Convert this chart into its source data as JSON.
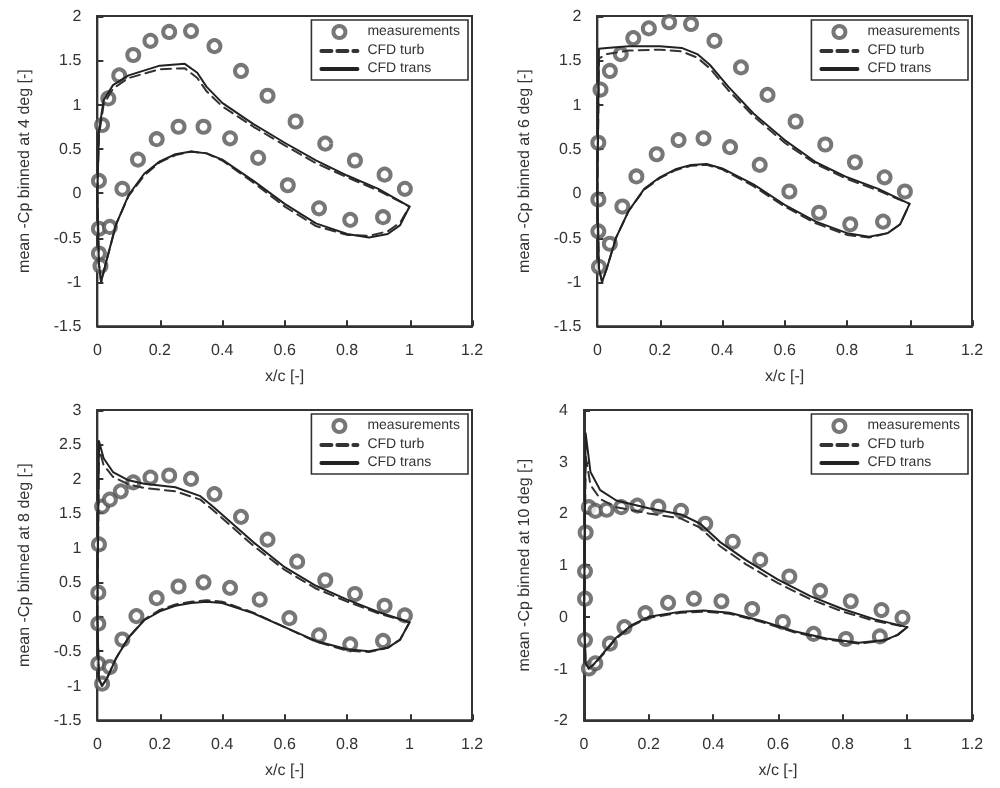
{
  "chart_data": [
    {
      "type": "line",
      "xlabel": "x/c [-]",
      "ylabel": "mean -Cp binned at 4 deg [-]",
      "xlim": [
        0,
        1.2
      ],
      "xticks": [
        0,
        0.2,
        0.4,
        0.6,
        0.8,
        1,
        1.2
      ],
      "ylim": [
        -1.5,
        2
      ],
      "yticks": [
        -1.5,
        -1,
        -0.5,
        0,
        0.5,
        1,
        1.5,
        2
      ],
      "legend": "top right",
      "series": [
        {
          "name": "measurements",
          "type": "scatter",
          "marker": "circle",
          "color": "#555555",
          "x": [
            0.015,
            0.035,
            0.07,
            0.115,
            0.17,
            0.23,
            0.3,
            0.375,
            0.46,
            0.545,
            0.635,
            0.73,
            0.825,
            0.92,
            0.985,
            0.005,
            0.005,
            0.005,
            0.01,
            0.04,
            0.08,
            0.13,
            0.19,
            0.26,
            0.34,
            0.425,
            0.515,
            0.61,
            0.71,
            0.81,
            0.915
          ],
          "values": [
            0.77,
            1.07,
            1.33,
            1.56,
            1.72,
            1.82,
            1.83,
            1.66,
            1.38,
            1.1,
            0.81,
            0.56,
            0.37,
            0.21,
            0.05,
            0.14,
            -0.4,
            -0.68,
            -0.82,
            -0.38,
            0.05,
            0.38,
            0.61,
            0.75,
            0.75,
            0.62,
            0.4,
            0.09,
            -0.17,
            -0.3,
            -0.27
          ]
        },
        {
          "name": "CFD turb",
          "line_style": "dashed",
          "color": "#333333",
          "x": [
            0,
            0.005,
            0.02,
            0.05,
            0.1,
            0.2,
            0.28,
            0.32,
            0.35,
            0.4,
            0.5,
            0.6,
            0.7,
            0.8,
            0.9,
            1,
            null,
            0,
            0.005,
            0.012,
            0.03,
            0.06,
            0.1,
            0.15,
            0.2,
            0.25,
            0.3,
            0.35,
            0.4,
            0.5,
            0.6,
            0.7,
            0.8,
            0.87,
            0.93,
            0.97,
            1
          ],
          "values": [
            0,
            0.65,
            1.0,
            1.18,
            1.3,
            1.4,
            1.41,
            1.3,
            1.15,
            0.98,
            0.75,
            0.54,
            0.34,
            0.18,
            0.03,
            -0.15,
            null,
            0,
            -0.8,
            -1.0,
            -0.75,
            -0.35,
            -0.03,
            0.2,
            0.35,
            0.43,
            0.47,
            0.45,
            0.37,
            0.12,
            -0.15,
            -0.37,
            -0.47,
            -0.48,
            -0.43,
            -0.33,
            -0.15
          ]
        },
        {
          "name": "CFD trans",
          "line_style": "solid",
          "color": "#222222",
          "x": [
            0,
            0.005,
            0.02,
            0.05,
            0.1,
            0.2,
            0.28,
            0.32,
            0.35,
            0.4,
            0.5,
            0.6,
            0.7,
            0.8,
            0.9,
            1,
            null,
            0,
            0.005,
            0.012,
            0.03,
            0.06,
            0.1,
            0.15,
            0.2,
            0.25,
            0.3,
            0.35,
            0.4,
            0.5,
            0.6,
            0.7,
            0.8,
            0.87,
            0.93,
            0.97,
            1
          ],
          "values": [
            0,
            0.7,
            1.05,
            1.22,
            1.33,
            1.44,
            1.46,
            1.36,
            1.2,
            1.02,
            0.78,
            0.57,
            0.37,
            0.2,
            0.05,
            -0.15,
            null,
            0,
            -0.8,
            -1.0,
            -0.75,
            -0.35,
            -0.02,
            0.22,
            0.36,
            0.44,
            0.47,
            0.45,
            0.38,
            0.14,
            -0.12,
            -0.34,
            -0.46,
            -0.5,
            -0.46,
            -0.36,
            -0.15
          ]
        }
      ]
    },
    {
      "type": "line",
      "xlabel": "x/c [-]",
      "ylabel": "mean -Cp binned at 6 deg [-]",
      "xlim": [
        0,
        1.2
      ],
      "xticks": [
        0,
        0.2,
        0.4,
        0.6,
        0.8,
        1,
        1.2
      ],
      "ylim": [
        -1.5,
        2
      ],
      "yticks": [
        -1.5,
        -1,
        -0.5,
        0,
        0.5,
        1,
        1.5,
        2
      ],
      "legend": "top right",
      "series": [
        {
          "name": "measurements",
          "type": "scatter",
          "marker": "circle",
          "color": "#555555",
          "x": [
            0.01,
            0.04,
            0.075,
            0.115,
            0.165,
            0.23,
            0.3,
            0.375,
            0.46,
            0.545,
            0.635,
            0.73,
            0.825,
            0.92,
            0.985,
            0.003,
            0.003,
            0.003,
            0.005,
            0.04,
            0.08,
            0.125,
            0.19,
            0.26,
            0.34,
            0.425,
            0.52,
            0.615,
            0.71,
            0.81,
            0.915
          ],
          "values": [
            1.17,
            1.38,
            1.57,
            1.75,
            1.86,
            1.93,
            1.91,
            1.72,
            1.42,
            1.11,
            0.81,
            0.55,
            0.35,
            0.18,
            0.02,
            0.57,
            -0.07,
            -0.43,
            -0.83,
            -0.57,
            -0.15,
            0.19,
            0.44,
            0.6,
            0.62,
            0.52,
            0.32,
            0.02,
            -0.22,
            -0.35,
            -0.32
          ]
        },
        {
          "name": "CFD turb",
          "line_style": "dashed",
          "color": "#333333",
          "x": [
            0,
            0.005,
            0.03,
            0.1,
            0.2,
            0.27,
            0.32,
            0.36,
            0.42,
            0.5,
            0.6,
            0.7,
            0.8,
            0.9,
            1,
            null,
            0,
            0.005,
            0.015,
            0.03,
            0.06,
            0.1,
            0.15,
            0.2,
            0.25,
            0.3,
            0.35,
            0.4,
            0.5,
            0.6,
            0.7,
            0.8,
            0.87,
            0.93,
            0.97,
            1
          ],
          "values": [
            0,
            1.52,
            1.57,
            1.61,
            1.62,
            1.6,
            1.53,
            1.41,
            1.16,
            0.87,
            0.57,
            0.33,
            0.16,
            0.03,
            -0.12,
            null,
            0,
            -0.85,
            -1.0,
            -0.85,
            -0.5,
            -0.2,
            0.04,
            0.17,
            0.26,
            0.31,
            0.32,
            0.27,
            0.08,
            -0.15,
            -0.34,
            -0.47,
            -0.5,
            -0.45,
            -0.35,
            -0.12
          ]
        },
        {
          "name": "CFD trans",
          "line_style": "solid",
          "color": "#222222",
          "x": [
            0,
            0.005,
            0.03,
            0.1,
            0.2,
            0.27,
            0.32,
            0.36,
            0.42,
            0.5,
            0.6,
            0.7,
            0.8,
            0.9,
            1,
            null,
            0,
            0.005,
            0.015,
            0.03,
            0.06,
            0.1,
            0.15,
            0.2,
            0.25,
            0.3,
            0.35,
            0.4,
            0.5,
            0.6,
            0.7,
            0.8,
            0.87,
            0.93,
            0.97,
            1
          ],
          "values": [
            0,
            1.63,
            1.64,
            1.66,
            1.66,
            1.64,
            1.57,
            1.45,
            1.2,
            0.9,
            0.6,
            0.35,
            0.18,
            0.05,
            -0.12,
            null,
            0,
            -0.85,
            -1.0,
            -0.85,
            -0.5,
            -0.2,
            0.05,
            0.18,
            0.27,
            0.32,
            0.33,
            0.28,
            0.1,
            -0.13,
            -0.32,
            -0.45,
            -0.49,
            -0.45,
            -0.35,
            -0.12
          ]
        }
      ]
    },
    {
      "type": "line",
      "xlabel": "x/c [-]",
      "ylabel": "mean -Cp binned at 8 deg [-]",
      "xlim": [
        0,
        1.2
      ],
      "xticks": [
        0,
        0.2,
        0.4,
        0.6,
        0.8,
        1,
        1.2
      ],
      "ylim": [
        -1.5,
        3
      ],
      "yticks": [
        -1.5,
        -1,
        -0.5,
        0,
        0.5,
        1,
        1.5,
        2,
        2.5,
        3
      ],
      "legend": "top right",
      "series": [
        {
          "name": "measurements",
          "type": "scatter",
          "marker": "circle",
          "color": "#555555",
          "x": [
            0.005,
            0.015,
            0.04,
            0.075,
            0.115,
            0.17,
            0.23,
            0.3,
            0.375,
            0.46,
            0.545,
            0.64,
            0.73,
            0.825,
            0.92,
            0.985,
            0.003,
            0.003,
            0.003,
            0.015,
            0.04,
            0.08,
            0.125,
            0.19,
            0.26,
            0.34,
            0.425,
            0.52,
            0.615,
            0.71,
            0.81,
            0.915
          ],
          "values": [
            1.05,
            1.6,
            1.7,
            1.82,
            1.95,
            2.02,
            2.05,
            2.0,
            1.78,
            1.45,
            1.12,
            0.8,
            0.53,
            0.33,
            0.16,
            0.02,
            0.35,
            -0.1,
            -0.68,
            -0.97,
            -0.73,
            -0.33,
            0.01,
            0.27,
            0.44,
            0.5,
            0.42,
            0.25,
            -0.02,
            -0.27,
            -0.4,
            -0.35
          ]
        },
        {
          "name": "CFD turb",
          "line_style": "dashed",
          "color": "#333333",
          "x": [
            0,
            0.005,
            0.02,
            0.05,
            0.1,
            0.15,
            0.25,
            0.33,
            0.37,
            0.42,
            0.5,
            0.6,
            0.7,
            0.8,
            0.9,
            1,
            null,
            0,
            0.005,
            0.015,
            0.03,
            0.06,
            0.1,
            0.15,
            0.2,
            0.25,
            0.3,
            0.35,
            0.4,
            0.5,
            0.6,
            0.7,
            0.8,
            0.87,
            0.93,
            0.97,
            1
          ],
          "values": [
            0,
            2.45,
            2.2,
            2.03,
            1.92,
            1.87,
            1.82,
            1.7,
            1.55,
            1.35,
            1.03,
            0.68,
            0.41,
            0.22,
            0.05,
            -0.08,
            null,
            0,
            -0.9,
            -1.0,
            -0.9,
            -0.6,
            -0.3,
            -0.04,
            0.1,
            0.18,
            0.22,
            0.24,
            0.22,
            0.06,
            -0.15,
            -0.36,
            -0.49,
            -0.51,
            -0.45,
            -0.33,
            -0.08
          ]
        },
        {
          "name": "CFD trans",
          "line_style": "solid",
          "color": "#222222",
          "x": [
            0,
            0.005,
            0.02,
            0.05,
            0.1,
            0.15,
            0.25,
            0.33,
            0.37,
            0.42,
            0.5,
            0.6,
            0.7,
            0.8,
            0.9,
            1,
            null,
            0,
            0.005,
            0.015,
            0.03,
            0.06,
            0.1,
            0.15,
            0.2,
            0.25,
            0.3,
            0.35,
            0.4,
            0.5,
            0.6,
            0.7,
            0.8,
            0.87,
            0.93,
            0.97,
            1
          ],
          "values": [
            0,
            2.55,
            2.3,
            2.1,
            1.98,
            1.93,
            1.88,
            1.75,
            1.6,
            1.4,
            1.08,
            0.72,
            0.45,
            0.25,
            0.07,
            -0.08,
            null,
            0,
            -0.9,
            -1.0,
            -0.9,
            -0.6,
            -0.3,
            -0.05,
            0.08,
            0.16,
            0.2,
            0.22,
            0.2,
            0.05,
            -0.15,
            -0.35,
            -0.47,
            -0.5,
            -0.45,
            -0.33,
            -0.08
          ]
        }
      ]
    },
    {
      "type": "line",
      "xlabel": "x/c [-]",
      "ylabel": "mean -Cp binned at 10 deg [-]",
      "xlim": [
        0,
        1.2
      ],
      "xticks": [
        0,
        0.2,
        0.4,
        0.6,
        0.8,
        1,
        1.2
      ],
      "ylim": [
        -2,
        4
      ],
      "yticks": [
        -2,
        -1,
        0,
        1,
        2,
        3,
        4
      ],
      "legend": "top right",
      "series": [
        {
          "name": "measurements",
          "type": "scatter",
          "marker": "circle",
          "color": "#555555",
          "x": [
            0.005,
            0.015,
            0.035,
            0.07,
            0.115,
            0.165,
            0.23,
            0.3,
            0.375,
            0.46,
            0.545,
            0.635,
            0.73,
            0.825,
            0.92,
            0.985,
            0.003,
            0.003,
            0.003,
            0.015,
            0.035,
            0.08,
            0.125,
            0.19,
            0.26,
            0.34,
            0.425,
            0.52,
            0.615,
            0.71,
            0.81,
            0.915
          ],
          "values": [
            1.63,
            2.12,
            2.05,
            2.07,
            2.12,
            2.15,
            2.13,
            2.05,
            1.8,
            1.45,
            1.1,
            0.78,
            0.5,
            0.3,
            0.13,
            -0.02,
            0.88,
            0.35,
            -0.45,
            -1.0,
            -0.9,
            -0.52,
            -0.2,
            0.07,
            0.27,
            0.35,
            0.3,
            0.15,
            -0.1,
            -0.33,
            -0.43,
            -0.38
          ]
        },
        {
          "name": "CFD turb",
          "line_style": "dashed",
          "color": "#333333",
          "x": [
            0,
            0.005,
            0.02,
            0.05,
            0.1,
            0.2,
            0.3,
            0.36,
            0.42,
            0.5,
            0.6,
            0.7,
            0.8,
            0.9,
            1,
            null,
            0,
            0.005,
            0.015,
            0.03,
            0.06,
            0.1,
            0.15,
            0.2,
            0.3,
            0.37,
            0.45,
            0.55,
            0.65,
            0.75,
            0.85,
            0.93,
            0.97,
            1
          ],
          "values": [
            0,
            3.1,
            2.55,
            2.28,
            2.12,
            2.0,
            1.9,
            1.72,
            1.37,
            1.02,
            0.65,
            0.34,
            0.1,
            -0.08,
            -0.2,
            null,
            0,
            -0.9,
            -1.0,
            -0.93,
            -0.72,
            -0.42,
            -0.17,
            -0.02,
            0.08,
            0.1,
            0.06,
            -0.1,
            -0.3,
            -0.44,
            -0.52,
            -0.46,
            -0.35,
            -0.2
          ]
        },
        {
          "name": "CFD trans",
          "line_style": "solid",
          "color": "#222222",
          "x": [
            0,
            0.005,
            0.02,
            0.05,
            0.1,
            0.2,
            0.3,
            0.36,
            0.42,
            0.5,
            0.6,
            0.7,
            0.8,
            0.9,
            1,
            null,
            0,
            0.005,
            0.015,
            0.03,
            0.06,
            0.1,
            0.15,
            0.2,
            0.3,
            0.37,
            0.45,
            0.55,
            0.65,
            0.75,
            0.85,
            0.93,
            0.97,
            1
          ],
          "values": [
            0,
            3.55,
            2.8,
            2.45,
            2.25,
            2.1,
            1.98,
            1.8,
            1.45,
            1.1,
            0.72,
            0.4,
            0.15,
            -0.05,
            -0.2,
            null,
            0,
            -0.9,
            -1.0,
            -0.92,
            -0.7,
            -0.4,
            -0.15,
            0,
            0.1,
            0.12,
            0.08,
            -0.08,
            -0.28,
            -0.42,
            -0.5,
            -0.45,
            -0.35,
            -0.2
          ]
        }
      ]
    }
  ]
}
